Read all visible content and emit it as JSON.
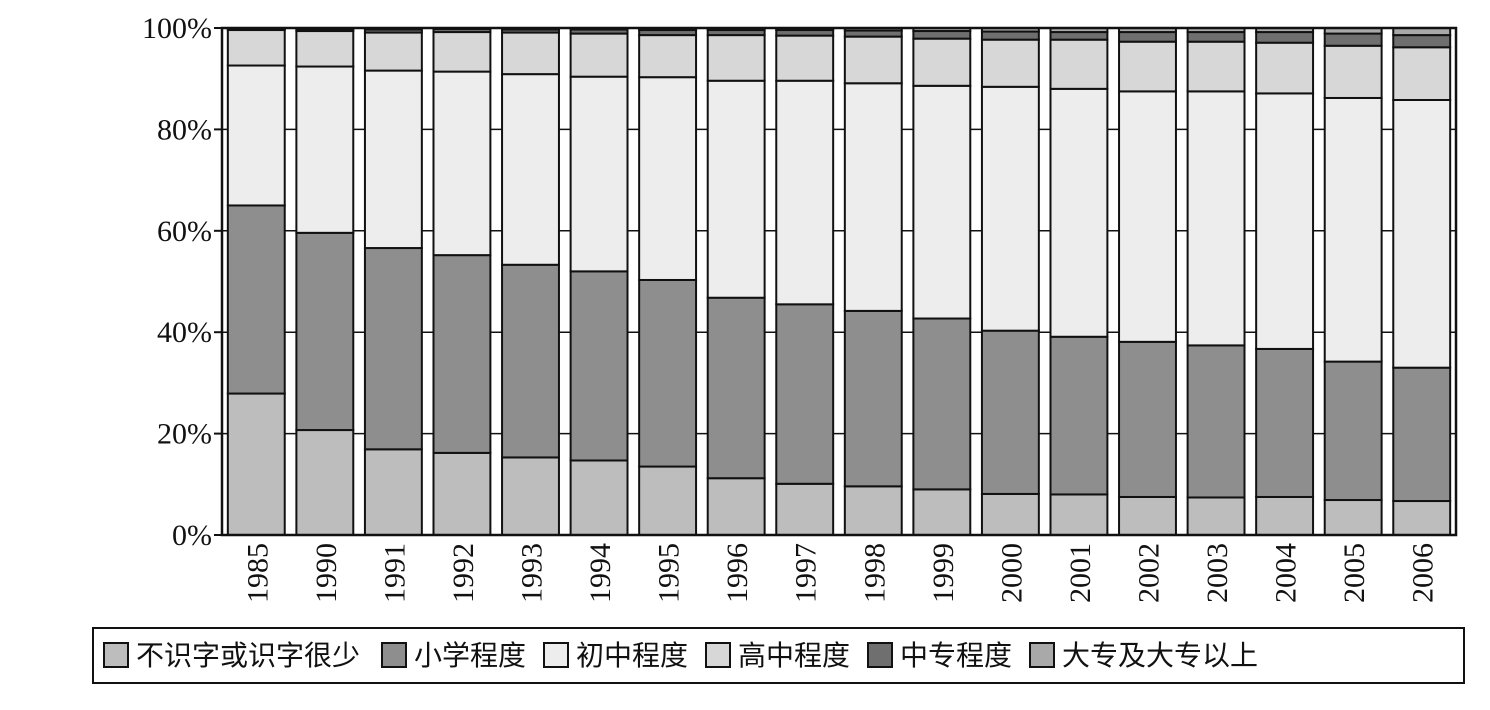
{
  "chart_data": {
    "type": "bar",
    "stacked": true,
    "percent": true,
    "title": "",
    "xlabel": "",
    "ylabel": "",
    "ylim": [
      0,
      100
    ],
    "yticks": [
      "0%",
      "20%",
      "40%",
      "60%",
      "80%",
      "100%"
    ],
    "grid": true,
    "legend_position": "bottom",
    "categories": [
      "1985",
      "1990",
      "1991",
      "1992",
      "1993",
      "1994",
      "1995",
      "1996",
      "1997",
      "1998",
      "1999",
      "2000",
      "2001",
      "2002",
      "2003",
      "2004",
      "2005",
      "2006"
    ],
    "series": [
      {
        "name": "不识字或识字很少",
        "color": "#bdbdbd",
        "values": [
          27.9,
          20.7,
          16.9,
          16.2,
          15.3,
          14.7,
          13.5,
          11.2,
          10.1,
          9.6,
          9.0,
          8.1,
          8.0,
          7.5,
          7.4,
          7.5,
          6.9,
          6.7
        ]
      },
      {
        "name": "小学程度",
        "color": "#8e8e8e",
        "values": [
          37.1,
          38.9,
          39.7,
          39.0,
          38.0,
          37.3,
          36.8,
          35.6,
          35.4,
          34.6,
          33.7,
          32.2,
          31.1,
          30.6,
          30.0,
          29.2,
          27.3,
          26.3
        ]
      },
      {
        "name": "初中程度",
        "color": "#ededed",
        "values": [
          27.6,
          32.8,
          35.0,
          36.2,
          37.6,
          38.4,
          40.0,
          42.8,
          44.1,
          44.9,
          45.9,
          48.1,
          48.9,
          49.4,
          50.1,
          50.4,
          52.0,
          52.8
        ]
      },
      {
        "name": "高中程度",
        "color": "#d7d7d7",
        "values": [
          7.0,
          7.0,
          7.5,
          7.8,
          8.2,
          8.5,
          8.3,
          9.0,
          8.9,
          9.2,
          9.3,
          9.3,
          9.7,
          9.8,
          9.8,
          10.0,
          10.3,
          10.4
        ]
      },
      {
        "name": "中专程度",
        "color": "#6f6f6f",
        "values": [
          0.3,
          0.4,
          0.6,
          0.6,
          0.6,
          0.8,
          1.0,
          1.0,
          1.1,
          1.2,
          1.5,
          1.6,
          1.5,
          1.9,
          1.9,
          2.1,
          2.4,
          2.4
        ]
      },
      {
        "name": "大专及大专以上",
        "color": "#a9a9a9",
        "values": [
          0.1,
          0.2,
          0.3,
          0.2,
          0.3,
          0.3,
          0.4,
          0.4,
          0.4,
          0.5,
          0.6,
          0.7,
          0.8,
          0.8,
          0.8,
          0.8,
          1.1,
          1.4
        ]
      }
    ]
  }
}
